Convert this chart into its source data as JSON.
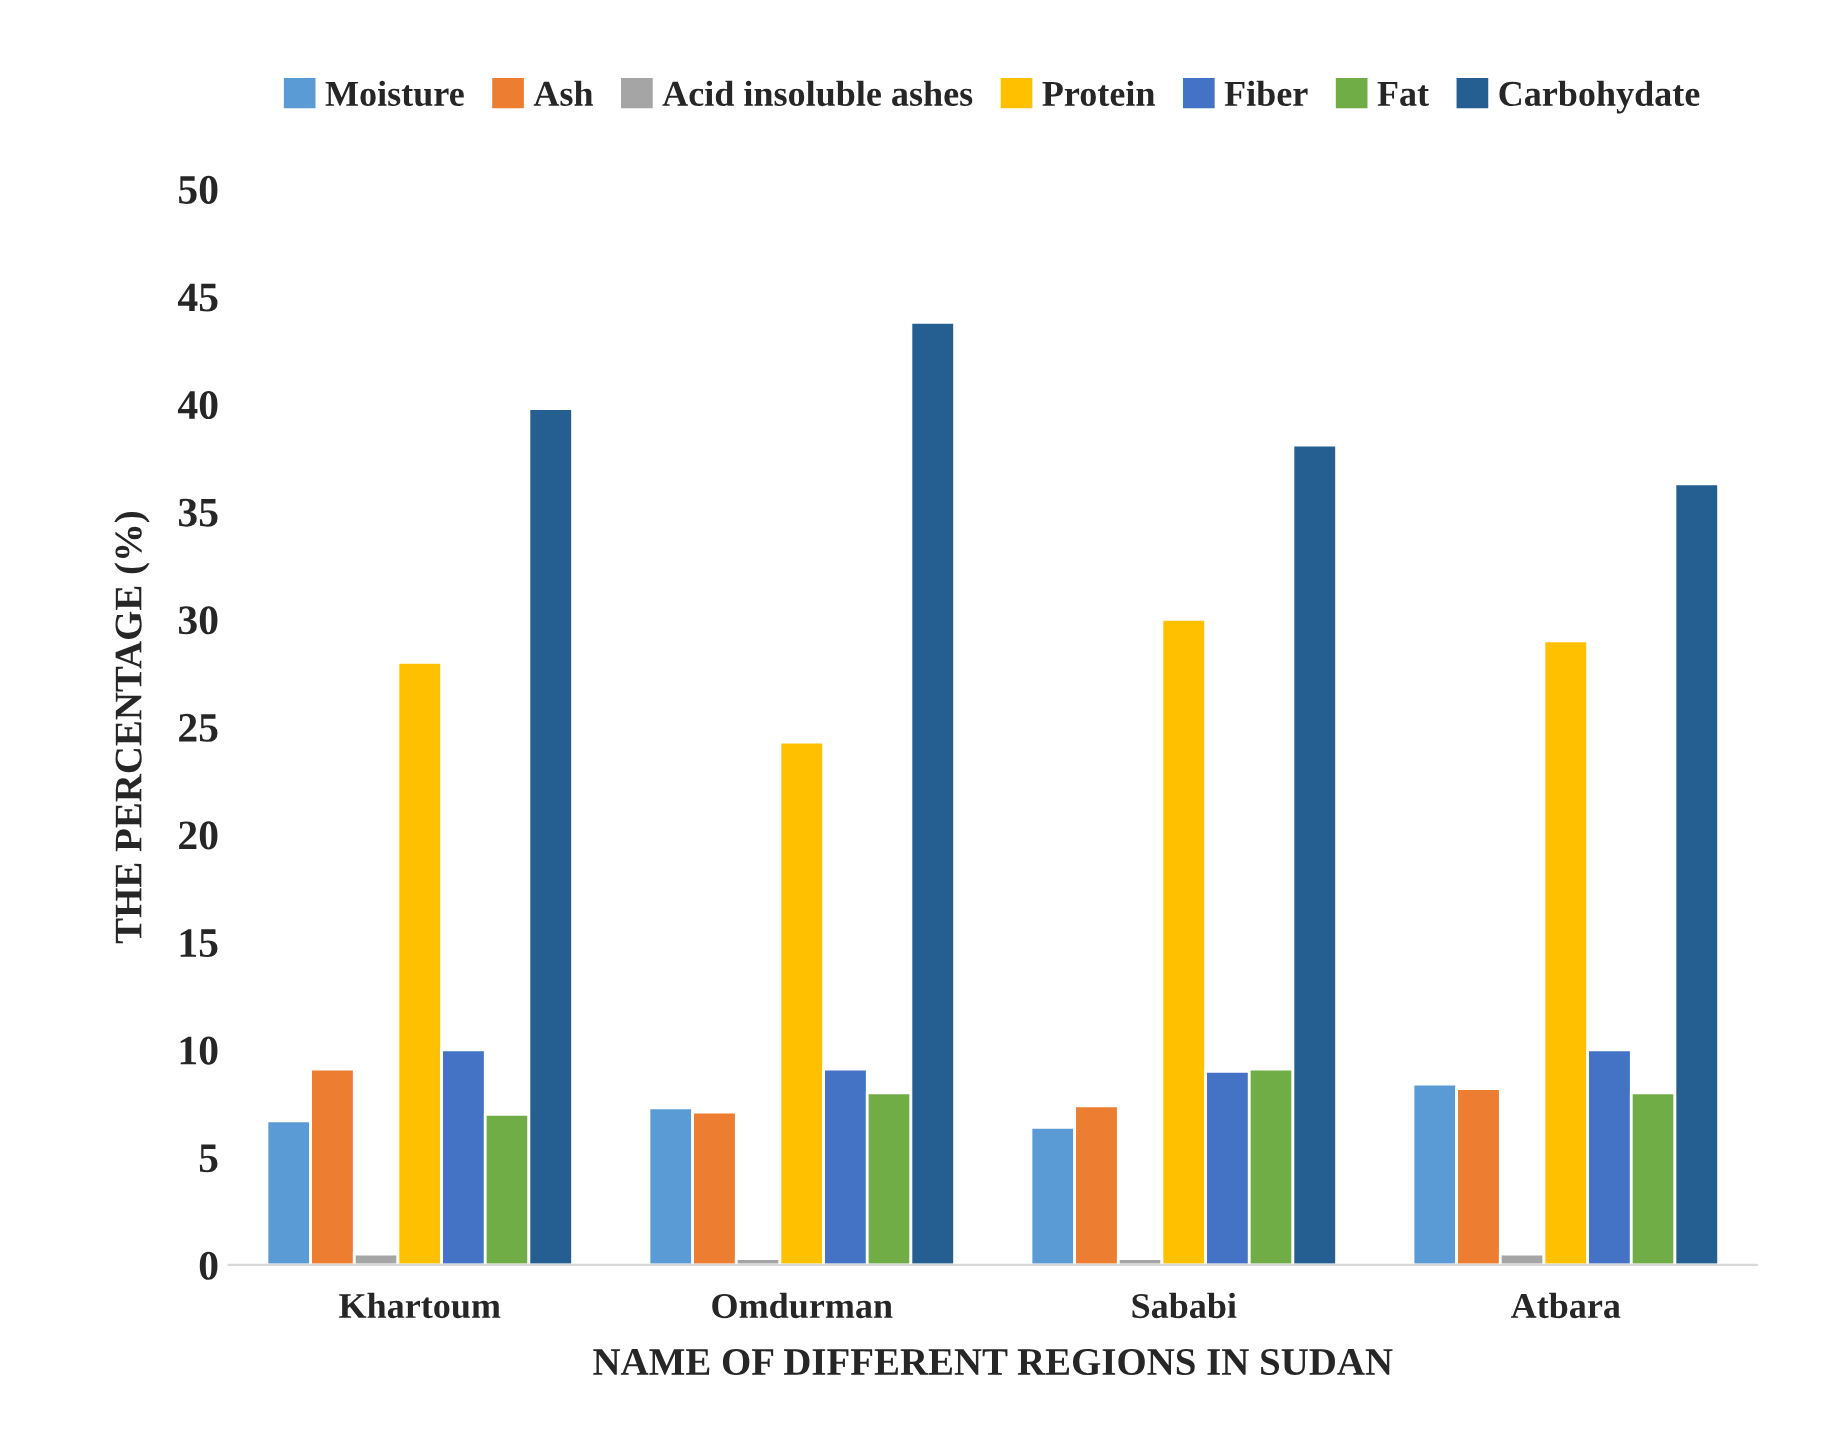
{
  "chart_data": {
    "type": "bar",
    "xlabel": "NAME OF DIFFERENT REGIONS IN SUDAN",
    "ylabel": "THE PERCENTAGE (%)",
    "categories": [
      "Khartoum",
      "Omdurman",
      "Sababi",
      "Atbara"
    ],
    "series": [
      {
        "name": "Moisture",
        "color": "#5b9bd5",
        "values": [
          6.7,
          7.3,
          6.4,
          8.4
        ]
      },
      {
        "name": "Ash",
        "color": "#ed7d31",
        "values": [
          9.1,
          7.1,
          7.4,
          8.2
        ]
      },
      {
        "name": "Acid insoluble ashes",
        "color": "#a5a5a5",
        "values": [
          0.5,
          0.3,
          0.3,
          0.5
        ]
      },
      {
        "name": "Protein",
        "color": "#ffc000",
        "values": [
          28.0,
          24.3,
          30.0,
          29.0
        ]
      },
      {
        "name": "Fiber",
        "color": "#4472c4",
        "values": [
          10.0,
          9.1,
          9.0,
          10.0
        ]
      },
      {
        "name": "Fat",
        "color": "#70ad47",
        "values": [
          7.0,
          8.0,
          9.1,
          8.0
        ]
      },
      {
        "name": "Carbohydate",
        "color": "#255e91",
        "values": [
          39.8,
          43.8,
          38.1,
          36.3
        ]
      }
    ],
    "ylim": [
      0,
      50
    ],
    "yticks": [
      0,
      5,
      10,
      15,
      20,
      25,
      30,
      35,
      40,
      45,
      50
    ],
    "grid": false,
    "legend": "top"
  }
}
